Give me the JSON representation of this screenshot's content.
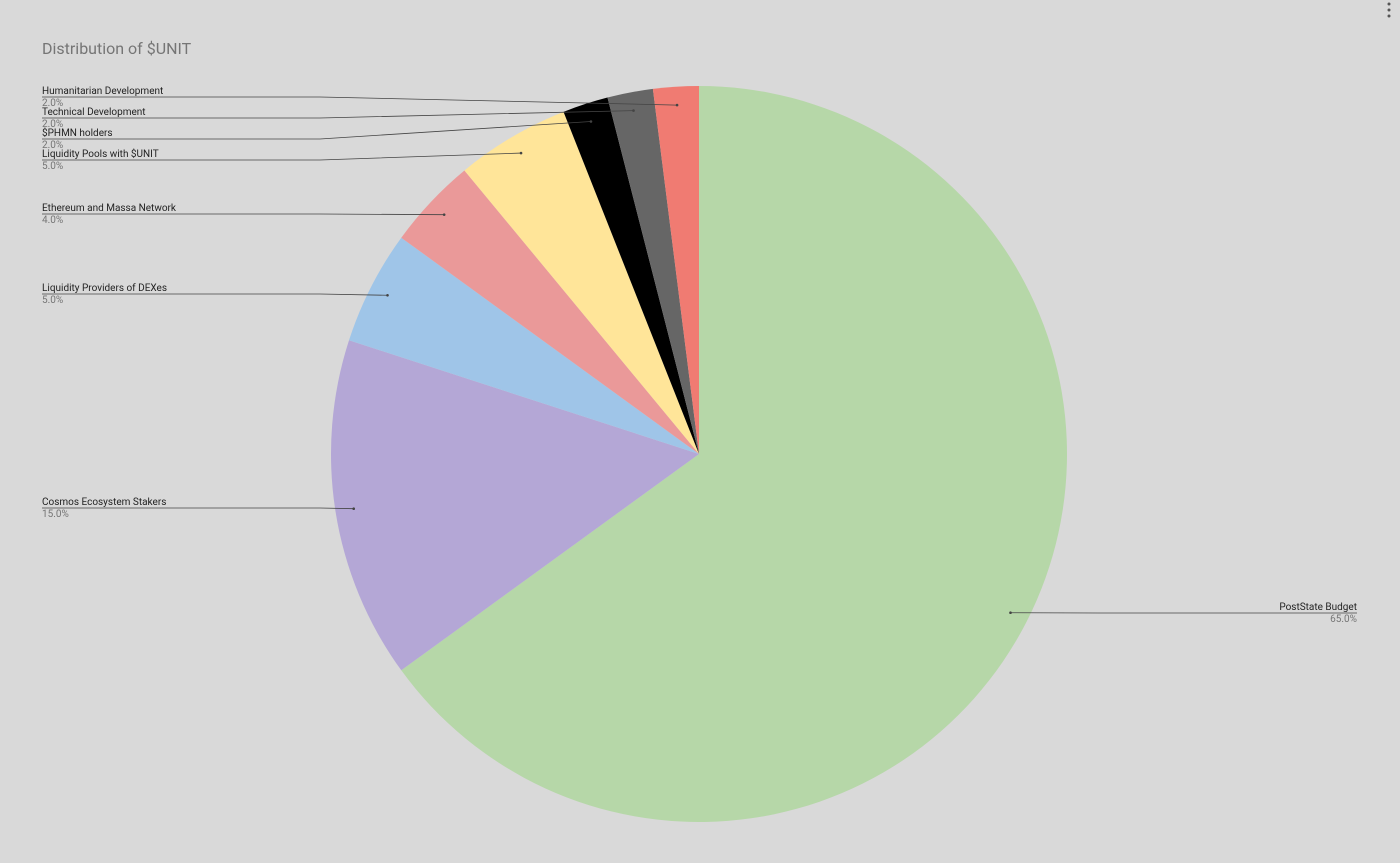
{
  "chart_data": {
    "type": "pie",
    "title": "Distribution of $UNIT",
    "categories": [
      "PostState Budget",
      "Cosmos Ecosystem Stakers",
      "Liquidity Providers of DEXes",
      "Ethereum and Massa Network",
      "Liquidity Pools with $UNIT",
      "$PHMN holders",
      "Technical Development",
      "Humanitarian Development"
    ],
    "values": [
      65,
      15,
      5,
      4,
      5,
      2,
      2,
      2
    ],
    "value_labels": [
      "65.0%",
      "15.0%",
      "5.0%",
      "4.0%",
      "5.0%",
      "2.0%",
      "2.0%",
      "2.0%"
    ],
    "colors": [
      "#b6d7a8",
      "#b4a7d6",
      "#9fc5e8",
      "#ea9999",
      "#ffe599",
      "#000000",
      "#666666",
      "#f07b72"
    ]
  }
}
